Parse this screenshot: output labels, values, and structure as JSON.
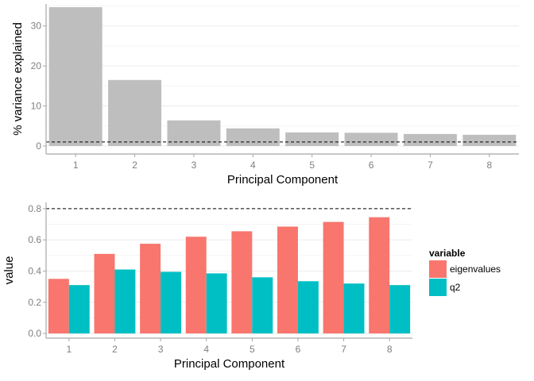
{
  "chart_data": [
    {
      "type": "bar",
      "categories": [
        "1",
        "2",
        "3",
        "4",
        "5",
        "6",
        "7",
        "8"
      ],
      "values": [
        34.7,
        16.5,
        6.4,
        4.4,
        3.4,
        3.3,
        3.0,
        2.8
      ],
      "reference_line": 1,
      "xlabel": "Principal Component",
      "ylabel": "% variance explained",
      "ylim": [
        -2,
        35.5
      ],
      "yticks": [
        0,
        10,
        20,
        30
      ],
      "bar_color": "#bebebe",
      "grid": true
    },
    {
      "type": "bar",
      "categories": [
        "1",
        "2",
        "3",
        "4",
        "5",
        "6",
        "7",
        "8"
      ],
      "series": [
        {
          "name": "eigenvalues",
          "values": [
            0.35,
            0.51,
            0.575,
            0.62,
            0.655,
            0.685,
            0.715,
            0.745
          ],
          "color": "#f8766d"
        },
        {
          "name": "q2",
          "values": [
            0.31,
            0.41,
            0.395,
            0.385,
            0.36,
            0.335,
            0.32,
            0.31
          ],
          "color": "#00bfc4"
        }
      ],
      "reference_line": 0.8,
      "xlabel": "Principal Component",
      "ylabel": "value",
      "ylim": [
        -0.03,
        0.84
      ],
      "yticks": [
        "0.0",
        "0.2",
        "0.4",
        "0.6",
        "0.8"
      ],
      "legend": {
        "title": "variable",
        "position": "right"
      },
      "grid": true
    }
  ]
}
